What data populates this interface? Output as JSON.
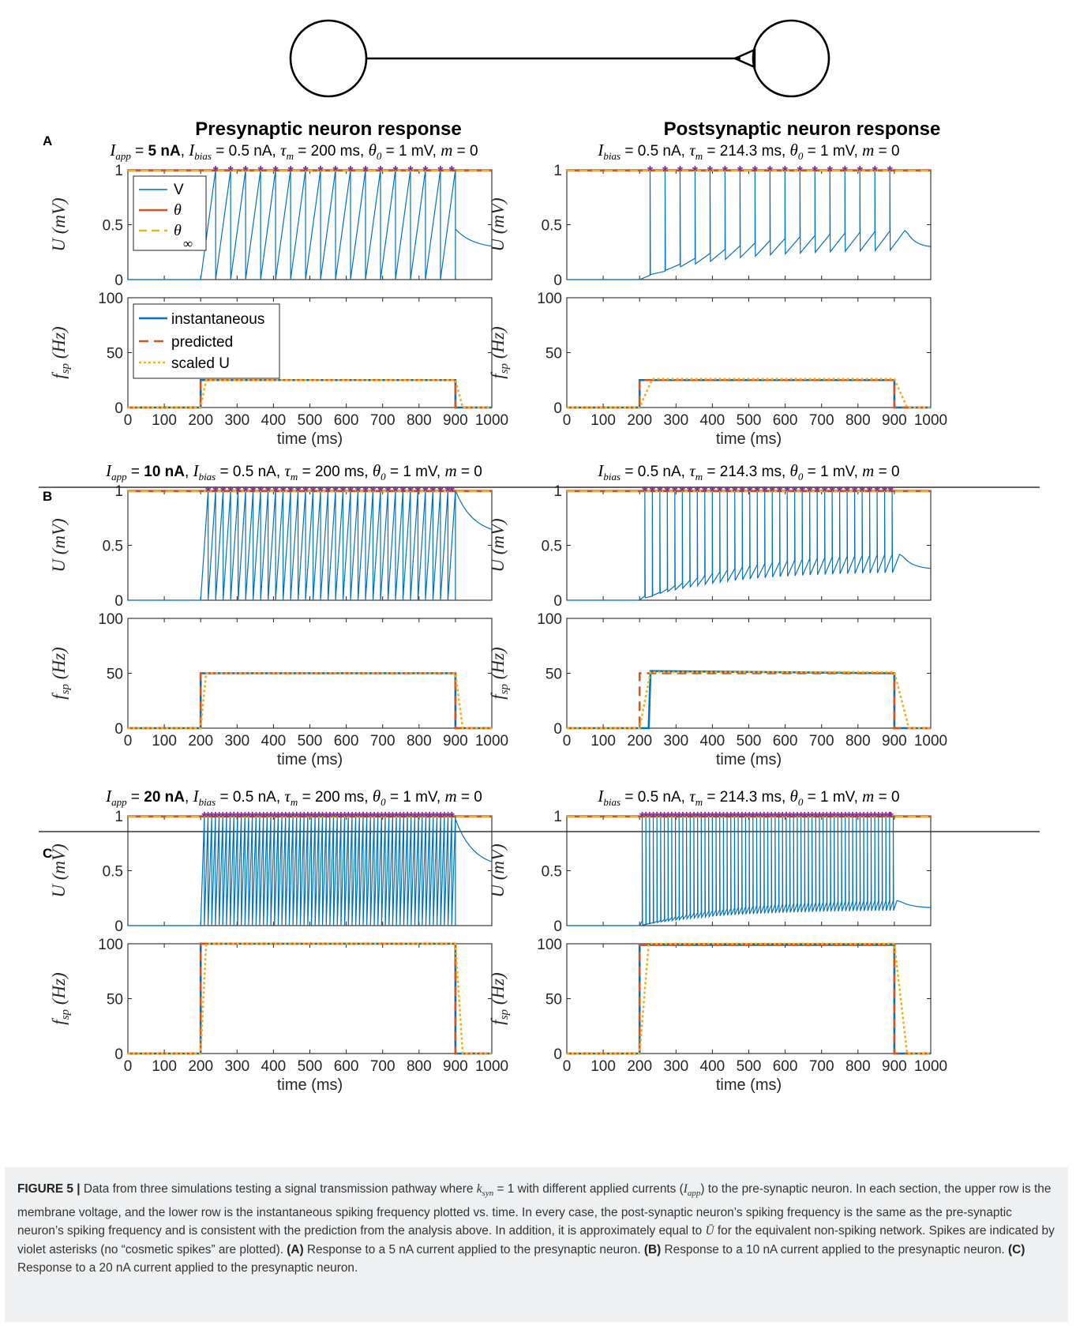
{
  "header": {
    "left_title": "Presynaptic neuron response",
    "right_title": "Postsynaptic neuron response"
  },
  "rows": [
    {
      "letter": "A",
      "iapp_prefix": " = ",
      "iapp_value": "5 nA"
    },
    {
      "letter": "B",
      "iapp_prefix": " = ",
      "iapp_value": "10 nA"
    },
    {
      "letter": "C",
      "iapp_prefix": " = ",
      "iapp_value": "20 nA"
    }
  ],
  "param_text": {
    "iapp_symbol": "I",
    "iapp_sub": "app",
    "ibias_symbol": "I",
    "ibias_sub": "bias",
    "ibias_value": " = 0.5 nA, ",
    "tau_symbol": "τ",
    "tau_sub": "m",
    "tau_pre_value": " = 200 ms, ",
    "tau_post_value": " = 214.3 ms, ",
    "theta_symbol": "θ",
    "theta_sub": "0",
    "theta_value": " = 1 mV, ",
    "m_symbol": "m",
    "m_value": " = 0"
  },
  "axes_text": {
    "u_ylabel": "U (mV)",
    "f_ylabel_main": "f",
    "f_ylabel_sub": "sp",
    "f_ylabel_units": " (Hz)",
    "xlabel": "time (ms)",
    "x_ticks": [
      "0",
      "100",
      "200",
      "300",
      "400",
      "500",
      "600",
      "700",
      "800",
      "900",
      "1000"
    ],
    "u_ticks": [
      "0",
      "0.5",
      "1"
    ],
    "f_ticks": [
      "0",
      "50",
      "100"
    ]
  },
  "legends": {
    "u": [
      "V",
      "θ",
      "θ",
      "∞"
    ],
    "f": [
      "instantaneous",
      "predicted",
      "scaled U"
    ]
  },
  "colors": {
    "V": "#0072bd",
    "theta": "#d95319",
    "theta_inf": "#edb120",
    "spike": "#7e2f8e",
    "instantaneous": "#0072bd",
    "predicted": "#d95319",
    "scaled_u": "#edb120"
  },
  "caption": {
    "label": "FIGURE 5 |",
    "p1": " Data from three simulations testing a signal transmission pathway where ",
    "k_sym": "k",
    "k_sub": "syn",
    "p2": " = 1 with different applied currents (",
    "i_sym": "I",
    "i_sub": "app",
    "p3": ") to the pre-synaptic neuron. In each section, the upper row is the membrane voltage, and the lower row is the instantaneous spiking frequency plotted vs. time. In every case, the post-synaptic neuron’s spiking frequency is the same as the pre-synaptic neuron’s spiking frequency and is consistent with the prediction from the analysis above. In addition, it is approximately equal to ",
    "ubar": "Ū",
    "p4": " for the equivalent non-spiking network. Spikes are indicated by violet asterisks (no “cosmetic spikes” are plotted). ",
    "a_label": "(A)",
    "a_text": " Response to a 5 nA current applied to the presynaptic neuron. ",
    "b_label": "(B)",
    "b_text": " Response to a 10 nA current applied to the presynaptic neuron. ",
    "c_label": "(C)",
    "c_text": " Response to a 20 nA current applied to the presynaptic neuron."
  },
  "chart_data": [
    {
      "panel": "A-pre-U",
      "type": "line",
      "ylabel": "U (mV)",
      "xlim": [
        0,
        1000
      ],
      "ylim": [
        0,
        1
      ],
      "series": [
        {
          "name": "V",
          "stimulus_on_ms": 200,
          "stimulus_off_ms": 900,
          "spike_count": 17,
          "first_spike_ms": 240,
          "last_spike_ms": 880,
          "post_peak": 0.46,
          "end_value": 0.28
        },
        {
          "name": "θ",
          "values": [
            1,
            1
          ]
        },
        {
          "name": "θ∞",
          "values": [
            1,
            1
          ]
        }
      ]
    },
    {
      "panel": "A-pre-f",
      "type": "line",
      "ylabel": "fsp (Hz)",
      "xlabel": "time (ms)",
      "xlim": [
        0,
        1000
      ],
      "ylim": [
        0,
        100
      ],
      "series": [
        {
          "name": "instantaneous",
          "x": [
            0,
            200,
            200,
            900,
            900,
            1000
          ],
          "values": [
            0,
            0,
            25,
            25,
            0,
            0
          ]
        },
        {
          "name": "predicted",
          "x": [
            0,
            200,
            200,
            900,
            900,
            1000
          ],
          "values": [
            0,
            0,
            25,
            25,
            0,
            0
          ]
        },
        {
          "name": "scaled U",
          "x": [
            0,
            200,
            215,
            900,
            920,
            1000
          ],
          "values": [
            0,
            0,
            25,
            25,
            0,
            0
          ]
        }
      ]
    },
    {
      "panel": "A-post-U",
      "type": "line",
      "ylabel": "U (mV)",
      "xlim": [
        0,
        1000
      ],
      "ylim": [
        0,
        1
      ],
      "series": [
        {
          "name": "V",
          "stimulus_on_ms": 200,
          "spike_count": 17,
          "first_spike_ms": 245,
          "last_spike_ms": 885,
          "baseline_end": 0.47,
          "end_value": 0.29
        },
        {
          "name": "θ",
          "values": [
            1,
            1
          ]
        },
        {
          "name": "θ∞",
          "values": [
            1,
            1
          ]
        }
      ]
    },
    {
      "panel": "A-post-f",
      "type": "line",
      "ylabel": "fsp (Hz)",
      "xlabel": "time (ms)",
      "xlim": [
        0,
        1000
      ],
      "ylim": [
        0,
        100
      ],
      "series": [
        {
          "name": "instantaneous",
          "x": [
            0,
            200,
            200,
            900,
            900,
            1000
          ],
          "values": [
            0,
            0,
            25,
            25,
            0,
            0
          ]
        },
        {
          "name": "predicted",
          "x": [
            0,
            200,
            200,
            900,
            900,
            1000
          ],
          "values": [
            0,
            0,
            25,
            25,
            0,
            0
          ]
        },
        {
          "name": "scaled U",
          "x": [
            0,
            200,
            235,
            900,
            935,
            1000
          ],
          "values": [
            0,
            0,
            26,
            26,
            0,
            0
          ]
        }
      ]
    },
    {
      "panel": "B-pre-U",
      "type": "line",
      "ylabel": "U (mV)",
      "xlim": [
        0,
        1000
      ],
      "ylim": [
        0,
        1
      ],
      "series": [
        {
          "name": "V",
          "stimulus_on_ms": 200,
          "stimulus_off_ms": 900,
          "spike_count": 34,
          "post_peak": 1.0,
          "end_value": 0.59
        },
        {
          "name": "θ",
          "values": [
            1,
            1
          ]
        },
        {
          "name": "θ∞",
          "values": [
            1,
            1
          ]
        }
      ]
    },
    {
      "panel": "B-pre-f",
      "type": "line",
      "ylabel": "fsp (Hz)",
      "xlabel": "time (ms)",
      "xlim": [
        0,
        1000
      ],
      "ylim": [
        0,
        100
      ],
      "series": [
        {
          "name": "instantaneous",
          "x": [
            0,
            200,
            200,
            900,
            900,
            1000
          ],
          "values": [
            0,
            0,
            50,
            50,
            0,
            0
          ]
        },
        {
          "name": "predicted",
          "x": [
            0,
            200,
            200,
            900,
            900,
            1000
          ],
          "values": [
            0,
            0,
            50,
            50,
            0,
            0
          ]
        },
        {
          "name": "scaled U",
          "x": [
            0,
            200,
            215,
            900,
            920,
            1000
          ],
          "values": [
            0,
            0,
            50,
            50,
            0,
            0
          ]
        }
      ]
    },
    {
      "panel": "B-post-U",
      "type": "line",
      "ylabel": "U (mV)",
      "xlim": [
        0,
        1000
      ],
      "ylim": [
        0,
        1
      ],
      "series": [
        {
          "name": "V",
          "stimulus_on_ms": 200,
          "spike_count": 34,
          "baseline_end": 0.44,
          "end_value": 0.28
        },
        {
          "name": "θ",
          "values": [
            1,
            1
          ]
        },
        {
          "name": "θ∞",
          "values": [
            1,
            1
          ]
        }
      ]
    },
    {
      "panel": "B-post-f",
      "type": "line",
      "ylabel": "fsp (Hz)",
      "xlabel": "time (ms)",
      "xlim": [
        0,
        1000
      ],
      "ylim": [
        0,
        100
      ],
      "series": [
        {
          "name": "instantaneous",
          "x": [
            0,
            200,
            225,
            230,
            900,
            900,
            1000
          ],
          "values": [
            0,
            0,
            0,
            52,
            50,
            0,
            0
          ]
        },
        {
          "name": "predicted",
          "x": [
            0,
            200,
            200,
            900,
            900,
            1000
          ],
          "values": [
            0,
            0,
            50,
            50,
            0,
            0
          ]
        },
        {
          "name": "scaled U",
          "x": [
            0,
            200,
            230,
            900,
            940,
            1000
          ],
          "values": [
            0,
            0,
            51,
            51,
            0,
            0
          ]
        }
      ]
    },
    {
      "panel": "C-pre-U",
      "type": "line",
      "ylabel": "U (mV)",
      "xlim": [
        0,
        1000
      ],
      "ylim": [
        0,
        1
      ],
      "series": [
        {
          "name": "V",
          "stimulus_on_ms": 200,
          "stimulus_off_ms": 900,
          "spike_count": 69,
          "post_peak": 0.97,
          "end_value": 0.52
        },
        {
          "name": "θ",
          "values": [
            1,
            1
          ]
        },
        {
          "name": "θ∞",
          "values": [
            1,
            1
          ]
        }
      ]
    },
    {
      "panel": "C-pre-f",
      "type": "line",
      "ylabel": "fsp (Hz)",
      "xlabel": "time (ms)",
      "xlim": [
        0,
        1000
      ],
      "ylim": [
        0,
        100
      ],
      "series": [
        {
          "name": "instantaneous",
          "x": [
            0,
            200,
            200,
            900,
            900,
            1000
          ],
          "values": [
            0,
            0,
            100,
            100,
            0,
            0
          ]
        },
        {
          "name": "predicted",
          "x": [
            0,
            200,
            200,
            900,
            900,
            1000
          ],
          "values": [
            0,
            0,
            100,
            100,
            0,
            0
          ]
        },
        {
          "name": "scaled U",
          "x": [
            0,
            200,
            215,
            900,
            920,
            1000
          ],
          "values": [
            0,
            0,
            100,
            100,
            0,
            0
          ]
        }
      ]
    },
    {
      "panel": "C-post-U",
      "type": "line",
      "ylabel": "U (mV)",
      "xlim": [
        0,
        1000
      ],
      "ylim": [
        0,
        1
      ],
      "series": [
        {
          "name": "V",
          "stimulus_on_ms": 200,
          "spike_count": 69,
          "baseline_end": 0.24,
          "end_value": 0.16
        },
        {
          "name": "θ",
          "values": [
            1,
            1
          ]
        },
        {
          "name": "θ∞",
          "values": [
            1,
            1
          ]
        }
      ]
    },
    {
      "panel": "C-post-f",
      "type": "line",
      "ylabel": "fsp (Hz)",
      "xlabel": "time (ms)",
      "xlim": [
        0,
        1000
      ],
      "ylim": [
        0,
        100
      ],
      "series": [
        {
          "name": "instantaneous",
          "x": [
            0,
            200,
            200,
            900,
            900,
            1000
          ],
          "values": [
            0,
            0,
            99,
            99,
            0,
            0
          ]
        },
        {
          "name": "predicted",
          "x": [
            0,
            200,
            200,
            900,
            900,
            1000
          ],
          "values": [
            0,
            0,
            99,
            99,
            0,
            0
          ]
        },
        {
          "name": "scaled U",
          "x": [
            0,
            200,
            225,
            900,
            935,
            1000
          ],
          "values": [
            0,
            0,
            100,
            100,
            0,
            0
          ]
        }
      ]
    }
  ]
}
